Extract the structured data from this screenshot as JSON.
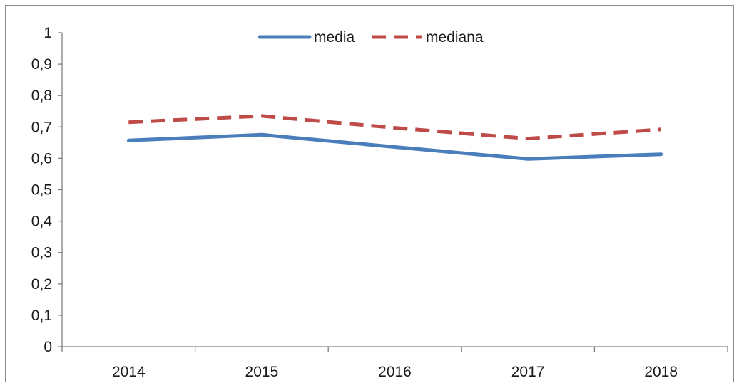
{
  "chart_data": {
    "type": "line",
    "title": "",
    "xlabel": "",
    "ylabel": "",
    "categories": [
      "2014",
      "2015",
      "2016",
      "2017",
      "2018"
    ],
    "ylim": [
      0,
      1
    ],
    "yticks": [
      0,
      0.1,
      0.2,
      0.3,
      0.4,
      0.5,
      0.6,
      0.7,
      0.8,
      0.9,
      1
    ],
    "ytick_labels": [
      "0",
      "0,1",
      "0,2",
      "0,3",
      "0,4",
      "0,5",
      "0,6",
      "0,7",
      "0,8",
      "0,9",
      "1"
    ],
    "grid": false,
    "legend_position": "top-center",
    "series": [
      {
        "name": "media",
        "values": [
          0.657,
          0.675,
          0.636,
          0.598,
          0.613
        ],
        "color": "#4a7ebb",
        "style": "solid"
      },
      {
        "name": "mediana",
        "values": [
          0.715,
          0.735,
          0.697,
          0.663,
          0.692
        ],
        "color": "#be4b48",
        "style": "dashed"
      }
    ]
  }
}
